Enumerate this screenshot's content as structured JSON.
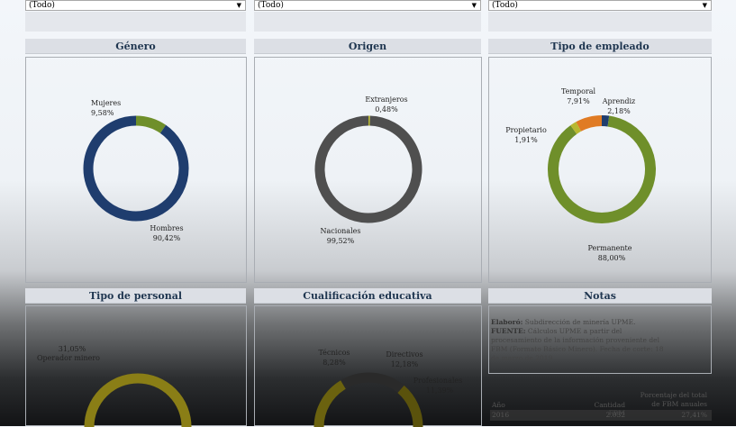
{
  "filters": [
    {
      "value": "(Todo)"
    },
    {
      "value": "(Todo)"
    },
    {
      "value": "(Todo)"
    }
  ],
  "panels": {
    "genero": {
      "title": "Género",
      "labels": [
        {
          "name": "Mujeres",
          "pct": "9,58%"
        },
        {
          "name": "Hombres",
          "pct": "90,42%"
        }
      ]
    },
    "origen": {
      "title": "Origen",
      "labels": [
        {
          "name": "Extranjeros",
          "pct": "0,48%"
        },
        {
          "name": "Nacionales",
          "pct": "99,52%"
        }
      ]
    },
    "tipo_empleado": {
      "title": "Tipo de empleado",
      "labels": [
        {
          "name": "Temporal",
          "pct": "7,91%"
        },
        {
          "name": "Aprendiz",
          "pct": "2,18%"
        },
        {
          "name": "Propietario",
          "pct": "1,91%"
        },
        {
          "name": "Permanente",
          "pct": "88,00%"
        }
      ]
    },
    "tipo_personal": {
      "title": "Tipo de personal",
      "labels": [
        {
          "pct": "31,05%",
          "name": "Operador minero"
        }
      ]
    },
    "cualificacion": {
      "title": "Cualificación educativa",
      "labels": [
        {
          "name": "Técnicos",
          "pct": "8,28%"
        },
        {
          "name": "Directivos",
          "pct": "12,18%"
        },
        {
          "name": "Profesionales",
          "pct": "11,39%"
        }
      ]
    },
    "notas": {
      "title": "Notas",
      "elabora_label": "Elaboró:",
      "elabora_text": "Subdirección de minería UPME.",
      "fuente_label": "FUENTE:",
      "fuente_text": "Cálculos UPME a partir del procesamiento de la información proveniente del FBM (Formato Básico Minero). Fecha de corte: 18 de marzo de 2019",
      "table": {
        "headers": [
          "Año",
          "Cantidad FBM",
          "Porcentaje del total de FBM anuales"
        ],
        "rows": [
          [
            "2016",
            "2.032",
            "27,41%"
          ]
        ]
      }
    }
  },
  "chart_data": [
    {
      "type": "pie",
      "title": "Género",
      "categories": [
        "Mujeres",
        "Hombres"
      ],
      "values": [
        9.58,
        90.42
      ],
      "colors": [
        "#6f8f2a",
        "#1f3d6e"
      ]
    },
    {
      "type": "pie",
      "title": "Origen",
      "categories": [
        "Extranjeros",
        "Nacionales"
      ],
      "values": [
        0.48,
        99.52
      ],
      "colors": [
        "#b8b830",
        "#4f4f4f"
      ]
    },
    {
      "type": "pie",
      "title": "Tipo de empleado",
      "categories": [
        "Aprendiz",
        "Permanente",
        "Propietario",
        "Temporal"
      ],
      "values": [
        2.18,
        88.0,
        1.91,
        7.91
      ],
      "colors": [
        "#1f3d6e",
        "#6f8f2a",
        "#b8b830",
        "#e07b24"
      ]
    }
  ]
}
